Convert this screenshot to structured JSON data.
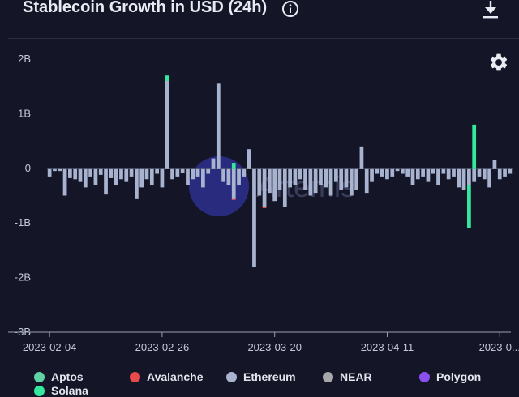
{
  "header": {
    "title": "Stablecoin Growth in USD (24h)",
    "info_icon": "info-circle-icon",
    "download_icon": "download-icon"
  },
  "toolbar": {
    "settings_icon": "gear-icon"
  },
  "watermark": {
    "text": "Artemis",
    "color": "#3b3ec9"
  },
  "colors": {
    "background": "#141627",
    "axis": "#9aa0b3",
    "zero_line": "#4a4e66"
  },
  "chart_data": {
    "type": "bar",
    "stacked": true,
    "title": "Stablecoin Growth in USD (24h)",
    "xlabel": "",
    "ylabel": "",
    "ylim": [
      -3000000000,
      2000000000
    ],
    "yticks": [
      {
        "value": 2000000000,
        "label": "2B"
      },
      {
        "value": 1000000000,
        "label": "1B"
      },
      {
        "value": 0,
        "label": "0"
      },
      {
        "value": -1000000000,
        "label": "-1B"
      },
      {
        "value": -2000000000,
        "label": "-2B"
      },
      {
        "value": -3000000000,
        "label": "-3B"
      }
    ],
    "xticks": [
      {
        "date": "2023-02-04",
        "label": "2023-02-04"
      },
      {
        "date": "2023-02-26",
        "label": "2023-02-26"
      },
      {
        "date": "2023-03-20",
        "label": "2023-03-20"
      },
      {
        "date": "2023-04-11",
        "label": "2023-04-11"
      },
      {
        "date": "2023-05-03",
        "label": "2023-0..."
      }
    ],
    "grid": false,
    "legend_position": "bottom",
    "dates": [
      "2023-02-04",
      "2023-02-05",
      "2023-02-06",
      "2023-02-07",
      "2023-02-08",
      "2023-02-09",
      "2023-02-10",
      "2023-02-11",
      "2023-02-12",
      "2023-02-13",
      "2023-02-14",
      "2023-02-15",
      "2023-02-16",
      "2023-02-17",
      "2023-02-18",
      "2023-02-19",
      "2023-02-20",
      "2023-02-21",
      "2023-02-22",
      "2023-02-23",
      "2023-02-24",
      "2023-02-25",
      "2023-02-26",
      "2023-02-27",
      "2023-02-28",
      "2023-03-01",
      "2023-03-02",
      "2023-03-03",
      "2023-03-04",
      "2023-03-05",
      "2023-03-06",
      "2023-03-07",
      "2023-03-08",
      "2023-03-09",
      "2023-03-10",
      "2023-03-11",
      "2023-03-12",
      "2023-03-13",
      "2023-03-14",
      "2023-03-15",
      "2023-03-16",
      "2023-03-17",
      "2023-03-18",
      "2023-03-19",
      "2023-03-20",
      "2023-03-21",
      "2023-03-22",
      "2023-03-23",
      "2023-03-24",
      "2023-03-25",
      "2023-03-26",
      "2023-03-27",
      "2023-03-28",
      "2023-03-29",
      "2023-03-30",
      "2023-03-31",
      "2023-04-01",
      "2023-04-02",
      "2023-04-03",
      "2023-04-04",
      "2023-04-05",
      "2023-04-06",
      "2023-04-07",
      "2023-04-08",
      "2023-04-09",
      "2023-04-10",
      "2023-04-11",
      "2023-04-12",
      "2023-04-13",
      "2023-04-14",
      "2023-04-15",
      "2023-04-16",
      "2023-04-17",
      "2023-04-18",
      "2023-04-19",
      "2023-04-20",
      "2023-04-21",
      "2023-04-22",
      "2023-04-23",
      "2023-04-24",
      "2023-04-25",
      "2023-04-26",
      "2023-04-27",
      "2023-04-28",
      "2023-04-29",
      "2023-04-30",
      "2023-05-01",
      "2023-05-02",
      "2023-05-03",
      "2023-05-04",
      "2023-05-05"
    ],
    "series": [
      {
        "name": "Aptos",
        "color": "#5fd3a5",
        "values": [
          0,
          0,
          0,
          0,
          0,
          0,
          0,
          0,
          0,
          0,
          0,
          0,
          0,
          0,
          0,
          0,
          0,
          0,
          0,
          0,
          0,
          0,
          0,
          0,
          0,
          0,
          0,
          0,
          0,
          0,
          0,
          0,
          0,
          0,
          0,
          0,
          0,
          0,
          0,
          0,
          0,
          0,
          0,
          0,
          0,
          0,
          0,
          0,
          0,
          0,
          0,
          0,
          0,
          0,
          0,
          0,
          0,
          0,
          0,
          0,
          0,
          0,
          0,
          0,
          0,
          0,
          0,
          0,
          0,
          0,
          0,
          0,
          0,
          0,
          0,
          0,
          0,
          0,
          0,
          0,
          0,
          0,
          0,
          0,
          0,
          0,
          0,
          0,
          0,
          0,
          0
        ]
      },
      {
        "name": "Avalanche",
        "color": "#e64a4a",
        "values": [
          0,
          0,
          0,
          0,
          0,
          0,
          0,
          0,
          0,
          0,
          0,
          0,
          0,
          0,
          0,
          0,
          0,
          0,
          0,
          0,
          0,
          0,
          0,
          0,
          0,
          0,
          0,
          0,
          0,
          0,
          0,
          0,
          0,
          0,
          0,
          0,
          -30000000,
          0,
          0,
          0,
          0,
          0,
          -30000000,
          0,
          0,
          0,
          0,
          0,
          0,
          0,
          0,
          0,
          0,
          0,
          0,
          0,
          0,
          0,
          0,
          0,
          0,
          0,
          0,
          0,
          0,
          0,
          0,
          0,
          0,
          0,
          0,
          0,
          0,
          0,
          0,
          0,
          0,
          0,
          0,
          0,
          0,
          0,
          0,
          0,
          0,
          0,
          0,
          0,
          0,
          0,
          0
        ]
      },
      {
        "name": "Ethereum",
        "color": "#a8b3cf",
        "values": [
          -150000000,
          -50000000,
          -50000000,
          -500000000,
          -180000000,
          -200000000,
          -250000000,
          -350000000,
          -150000000,
          -300000000,
          -120000000,
          -480000000,
          -180000000,
          -300000000,
          -200000000,
          -250000000,
          -150000000,
          -550000000,
          -350000000,
          -200000000,
          -300000000,
          -100000000,
          -350000000,
          1600000000,
          -200000000,
          -150000000,
          -80000000,
          -300000000,
          -200000000,
          -150000000,
          -350000000,
          -100000000,
          180000000,
          1550000000,
          -250000000,
          -300000000,
          -550000000,
          -300000000,
          -150000000,
          350000000,
          -1800000000,
          -500000000,
          -700000000,
          -450000000,
          -600000000,
          -400000000,
          -700000000,
          -350000000,
          -300000000,
          -200000000,
          -400000000,
          -500000000,
          -450000000,
          -300000000,
          -350000000,
          -500000000,
          -250000000,
          -400000000,
          -350000000,
          -500000000,
          -400000000,
          400000000,
          -450000000,
          -250000000,
          -100000000,
          -150000000,
          -200000000,
          -150000000,
          -50000000,
          -100000000,
          -150000000,
          -300000000,
          -200000000,
          -150000000,
          -250000000,
          -100000000,
          -300000000,
          -100000000,
          -200000000,
          -150000000,
          -350000000,
          -400000000,
          -300000000,
          -250000000,
          -150000000,
          -200000000,
          -350000000,
          150000000,
          -200000000,
          -150000000,
          -100000000
        ]
      },
      {
        "name": "NEAR",
        "color": "#a9a9ad",
        "values": [
          0,
          0,
          0,
          0,
          0,
          0,
          0,
          0,
          0,
          0,
          0,
          0,
          0,
          0,
          0,
          0,
          0,
          0,
          0,
          0,
          0,
          0,
          0,
          0,
          0,
          0,
          0,
          0,
          0,
          0,
          0,
          0,
          0,
          0,
          0,
          0,
          0,
          0,
          0,
          0,
          0,
          0,
          0,
          0,
          0,
          0,
          0,
          0,
          0,
          0,
          0,
          0,
          0,
          0,
          0,
          0,
          0,
          0,
          0,
          0,
          0,
          0,
          0,
          0,
          0,
          0,
          0,
          0,
          0,
          0,
          0,
          0,
          0,
          0,
          0,
          0,
          0,
          0,
          0,
          0,
          0,
          0,
          0,
          0,
          0,
          0,
          0,
          0,
          0,
          0,
          0
        ]
      },
      {
        "name": "Polygon",
        "color": "#8b4ff0",
        "values": [
          0,
          0,
          0,
          0,
          0,
          0,
          0,
          0,
          0,
          0,
          0,
          0,
          0,
          0,
          0,
          0,
          0,
          0,
          0,
          0,
          0,
          0,
          0,
          0,
          0,
          0,
          0,
          0,
          0,
          0,
          0,
          0,
          0,
          0,
          0,
          0,
          0,
          0,
          0,
          0,
          0,
          0,
          0,
          0,
          0,
          0,
          0,
          0,
          0,
          0,
          0,
          0,
          0,
          0,
          0,
          0,
          0,
          0,
          0,
          0,
          0,
          0,
          0,
          0,
          0,
          0,
          0,
          0,
          0,
          0,
          0,
          0,
          0,
          0,
          0,
          0,
          0,
          0,
          0,
          0,
          0,
          0,
          0,
          0,
          0,
          0,
          0,
          0,
          0,
          0,
          0
        ]
      },
      {
        "name": "Solana",
        "color": "#34e89e",
        "values": [
          0,
          0,
          0,
          0,
          0,
          0,
          0,
          0,
          0,
          0,
          0,
          0,
          0,
          0,
          0,
          0,
          0,
          0,
          0,
          0,
          0,
          0,
          0,
          100000000,
          0,
          0,
          0,
          0,
          0,
          0,
          0,
          0,
          0,
          0,
          0,
          0,
          100000000,
          0,
          0,
          0,
          0,
          0,
          0,
          0,
          0,
          0,
          0,
          0,
          0,
          0,
          0,
          0,
          0,
          0,
          0,
          0,
          0,
          0,
          0,
          0,
          0,
          0,
          0,
          0,
          0,
          0,
          0,
          0,
          0,
          0,
          0,
          0,
          0,
          0,
          0,
          0,
          0,
          0,
          0,
          0,
          0,
          0,
          -800000000,
          800000000,
          0,
          0,
          0,
          0,
          0,
          0,
          0
        ]
      }
    ]
  },
  "legend": {
    "items": [
      {
        "label": "Aptos",
        "color": "#5fd3a5"
      },
      {
        "label": "Avalanche",
        "color": "#e64a4a"
      },
      {
        "label": "Ethereum",
        "color": "#a8b3cf"
      },
      {
        "label": "NEAR",
        "color": "#a9a9ad"
      },
      {
        "label": "Polygon",
        "color": "#8b4ff0"
      },
      {
        "label": "Solana",
        "color": "#34e89e"
      }
    ]
  }
}
